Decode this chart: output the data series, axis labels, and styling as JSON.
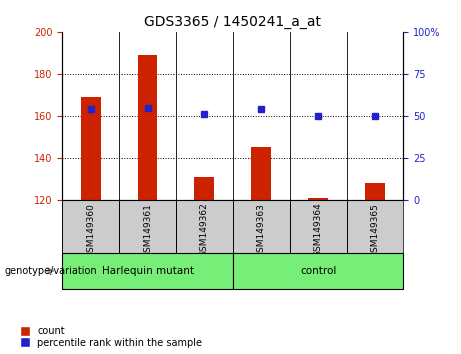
{
  "title": "GDS3365 / 1450241_a_at",
  "samples": [
    "GSM149360",
    "GSM149361",
    "GSM149362",
    "GSM149363",
    "GSM149364",
    "GSM149365"
  ],
  "bar_values": [
    169,
    189,
    131,
    145,
    121,
    128
  ],
  "bar_bottom": 120,
  "percentile_values": [
    54,
    55,
    51,
    54,
    50,
    50
  ],
  "left_ylim": [
    120,
    200
  ],
  "left_yticks": [
    120,
    140,
    160,
    180,
    200
  ],
  "right_ylim": [
    0,
    100
  ],
  "right_yticks": [
    0,
    25,
    50,
    75,
    100
  ],
  "right_yticklabels": [
    "0",
    "25",
    "50",
    "75",
    "100%"
  ],
  "bar_color": "#cc2200",
  "blue_color": "#2222cc",
  "group_labels": [
    "Harlequin mutant",
    "control"
  ],
  "group_ranges": [
    [
      0,
      3
    ],
    [
      3,
      6
    ]
  ],
  "group_color": "#77ee77",
  "sample_bg_color": "#cccccc",
  "genotype_label": "genotype/variation",
  "legend_count_label": "count",
  "legend_pct_label": "percentile rank within the sample",
  "title_fontsize": 10,
  "tick_fontsize": 7,
  "bar_width": 0.35
}
